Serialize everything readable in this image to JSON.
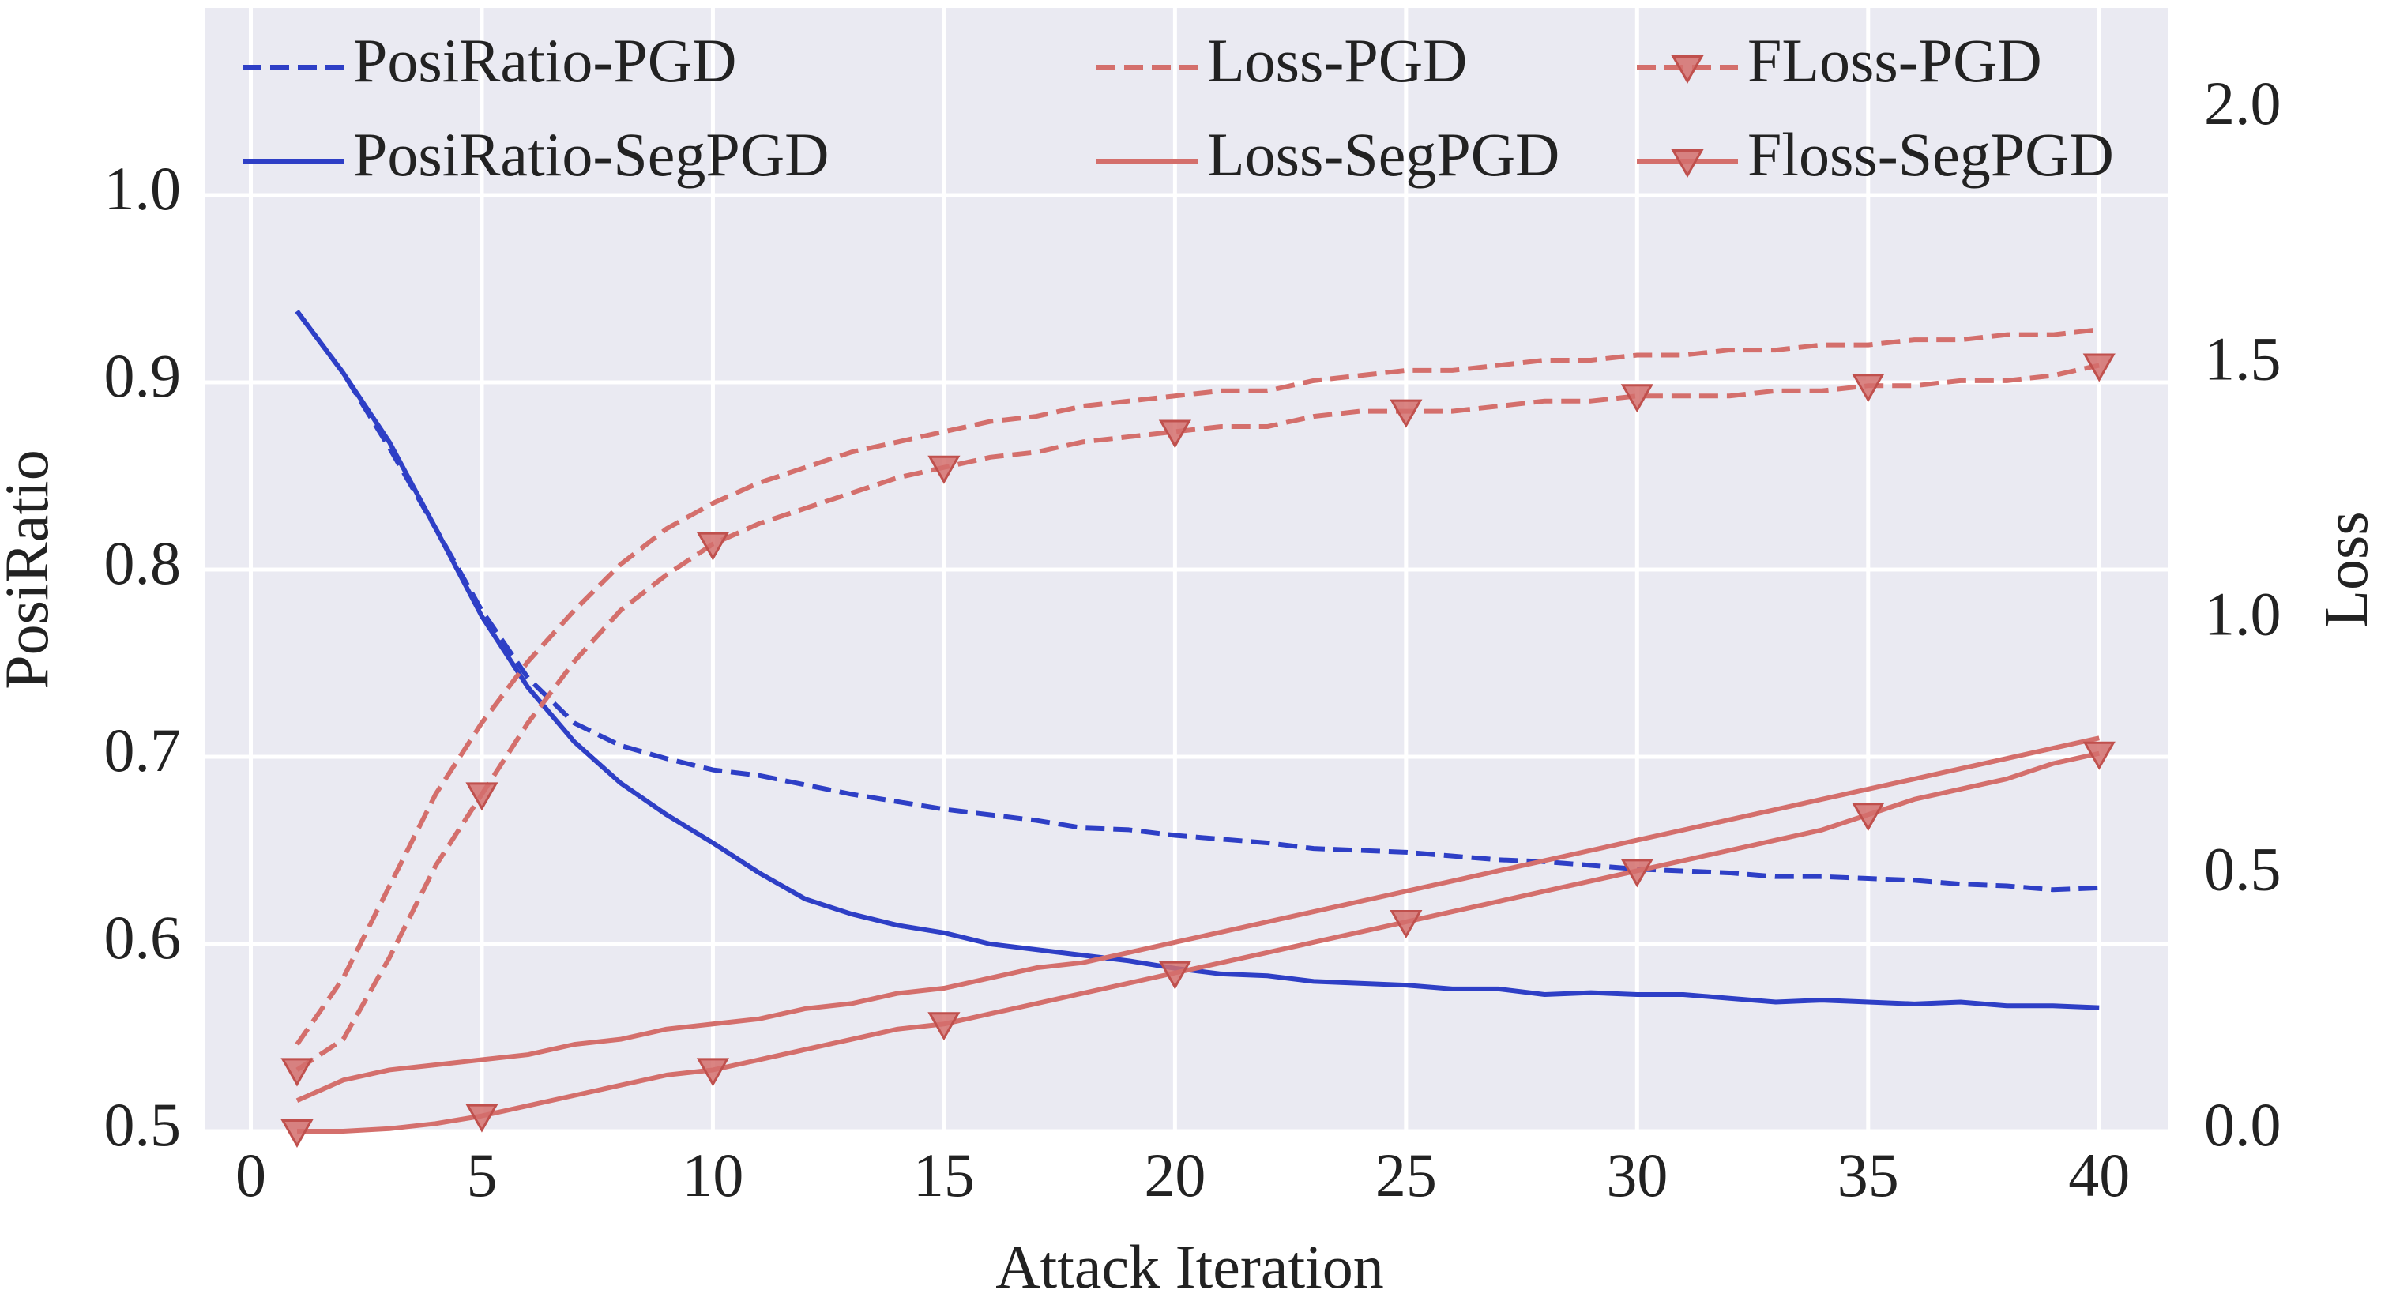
{
  "chart_data": {
    "type": "line",
    "xlabel": "Attack Iteration",
    "ylabel": "PosiRatio",
    "y2label": "Loss",
    "ylabel_color": "#2e3fc6",
    "y2label_color": "#c0392b",
    "x": [
      1,
      2,
      3,
      4,
      5,
      6,
      7,
      8,
      9,
      10,
      11,
      12,
      13,
      14,
      15,
      16,
      17,
      18,
      19,
      20,
      21,
      22,
      23,
      24,
      25,
      26,
      27,
      28,
      29,
      30,
      31,
      32,
      33,
      34,
      35,
      36,
      37,
      38,
      39,
      40
    ],
    "xlim": [
      -1,
      41.5
    ],
    "xticks": [
      0,
      5,
      10,
      15,
      20,
      25,
      30,
      35,
      40
    ],
    "ylim": [
      0.5,
      1.1
    ],
    "yticks": [
      0.5,
      0.6,
      0.7,
      0.8,
      0.9,
      {
        "value": 1.0,
        "label": "1.0"
      }
    ],
    "y2lim": [
      0,
      2.2
    ],
    "y2ticks": [
      {
        "value": 0,
        "label": "0.0"
      },
      0.5,
      {
        "value": 1.0,
        "label": "1.0"
      },
      1.5,
      {
        "value": 2.0,
        "label": "2.0"
      }
    ],
    "grid": true,
    "series": [
      {
        "name": "PosiRatio-PGD",
        "color": "#2e3fc6",
        "dashed": true,
        "values": [
          0.938,
          0.905,
          0.865,
          0.822,
          0.778,
          0.742,
          0.718,
          0.706,
          0.699,
          0.693,
          0.69,
          0.685,
          0.68,
          0.676,
          0.672,
          0.669,
          0.666,
          0.662,
          0.661,
          0.658,
          0.656,
          0.654,
          0.651,
          0.65,
          0.649,
          0.647,
          0.645,
          0.644,
          0.642,
          0.64,
          0.639,
          0.638,
          0.636,
          0.636,
          0.635,
          0.634,
          0.632,
          0.631,
          0.629,
          0.63
        ]
      },
      {
        "name": "PosiRatio-SegPGD",
        "color": "#2e3fc6",
        "dashed": false,
        "values": [
          0.938,
          0.905,
          0.868,
          0.822,
          0.775,
          0.737,
          0.708,
          0.686,
          0.669,
          0.654,
          0.638,
          0.624,
          0.616,
          0.61,
          0.606,
          0.6,
          0.597,
          0.594,
          0.591,
          0.587,
          0.584,
          0.583,
          0.58,
          0.579,
          0.578,
          0.576,
          0.576,
          0.573,
          0.574,
          0.573,
          0.573,
          0.571,
          0.569,
          0.57,
          0.569,
          0.568,
          0.569,
          0.567,
          0.567,
          0.566
        ]
      },
      {
        "name": "Loss-PGD",
        "color": "#d46f6c",
        "dashed": true,
        "axis": "y2",
        "values": [
          0.17,
          0.3,
          0.48,
          0.66,
          0.8,
          0.92,
          1.02,
          1.11,
          1.18,
          1.23,
          1.27,
          1.3,
          1.33,
          1.35,
          1.37,
          1.39,
          1.4,
          1.42,
          1.43,
          1.44,
          1.45,
          1.45,
          1.47,
          1.48,
          1.49,
          1.49,
          1.5,
          1.51,
          1.51,
          1.52,
          1.52,
          1.53,
          1.53,
          1.54,
          1.54,
          1.55,
          1.55,
          1.56,
          1.56,
          1.57
        ]
      },
      {
        "name": "Loss-SegPGD",
        "color": "#d46f6c",
        "dashed": false,
        "axis": "y2",
        "values": [
          0.06,
          0.1,
          0.12,
          0.13,
          0.14,
          0.15,
          0.17,
          0.18,
          0.2,
          0.21,
          0.22,
          0.24,
          0.25,
          0.27,
          0.28,
          0.3,
          0.32,
          0.33,
          0.35,
          0.37,
          0.39,
          0.41,
          0.43,
          0.45,
          0.47,
          0.49,
          0.51,
          0.53,
          0.55,
          0.57,
          0.59,
          0.61,
          0.63,
          0.65,
          0.67,
          0.69,
          0.71,
          0.73,
          0.75,
          0.77
        ]
      },
      {
        "name": "FLoss-PGD",
        "color": "#d46f6c",
        "dashed": true,
        "axis": "y2",
        "marker": "triangle-down",
        "markevery": [
          0,
          4,
          9,
          14,
          19,
          24,
          29,
          34,
          39
        ],
        "values": [
          0.12,
          0.18,
          0.34,
          0.52,
          0.66,
          0.8,
          0.92,
          1.02,
          1.09,
          1.15,
          1.19,
          1.22,
          1.25,
          1.28,
          1.3,
          1.32,
          1.33,
          1.35,
          1.36,
          1.37,
          1.38,
          1.38,
          1.4,
          1.41,
          1.41,
          1.41,
          1.42,
          1.43,
          1.43,
          1.44,
          1.44,
          1.44,
          1.45,
          1.45,
          1.46,
          1.46,
          1.47,
          1.47,
          1.48,
          1.5
        ]
      },
      {
        "name": "Floss-SegPGD",
        "color": "#d46f6c",
        "dashed": false,
        "axis": "y2",
        "marker": "triangle-down",
        "markevery": [
          0,
          4,
          9,
          14,
          19,
          24,
          29,
          34,
          39
        ],
        "values": [
          0.0,
          0.0,
          0.005,
          0.015,
          0.03,
          0.05,
          0.07,
          0.09,
          0.11,
          0.12,
          0.14,
          0.16,
          0.18,
          0.2,
          0.21,
          0.23,
          0.25,
          0.27,
          0.29,
          0.31,
          0.33,
          0.35,
          0.37,
          0.39,
          0.41,
          0.43,
          0.45,
          0.47,
          0.49,
          0.51,
          0.53,
          0.55,
          0.57,
          0.59,
          0.62,
          0.65,
          0.67,
          0.69,
          0.72,
          0.74
        ]
      }
    ]
  }
}
